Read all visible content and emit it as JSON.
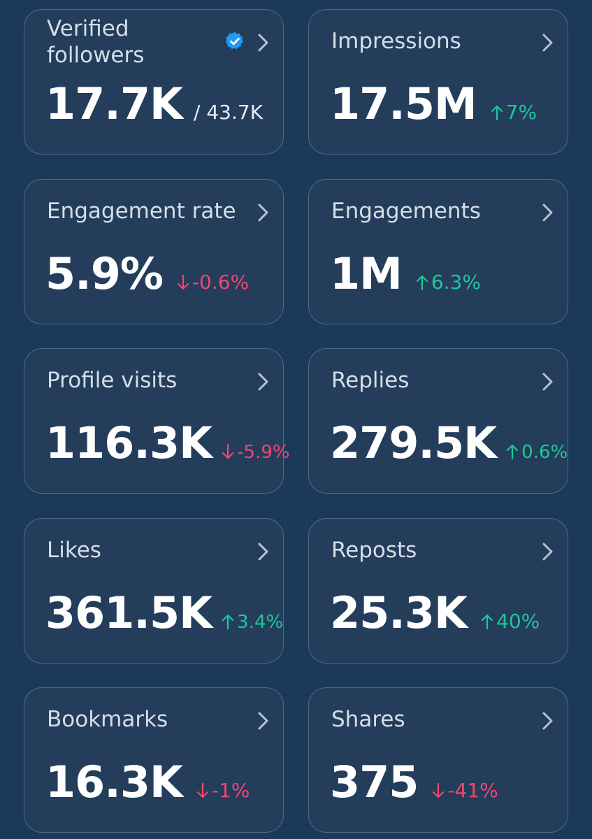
{
  "colors": {
    "background": "#1b3a59",
    "card_background": "#233d5b",
    "card_border": "#4f6c8a",
    "positive": "#1fc79a",
    "negative": "#f0476f",
    "verified_badge": "#1d9bf0"
  },
  "cards": [
    {
      "title": "Verified followers",
      "value": "17.7K",
      "sub": "/ 43.7K",
      "badge_icon": "verified-badge-icon",
      "chevron_icon": "chevron-right-icon"
    },
    {
      "title": "Impressions",
      "value": "17.5M",
      "delta": "7%",
      "direction": "up",
      "chevron_icon": "chevron-right-icon"
    },
    {
      "title": "Engagement rate",
      "value": "5.9%",
      "delta": "-0.6%",
      "direction": "down",
      "chevron_icon": "chevron-right-icon"
    },
    {
      "title": "Engagements",
      "value": "1M",
      "delta": "6.3%",
      "direction": "up",
      "chevron_icon": "chevron-right-icon"
    },
    {
      "title": "Profile visits",
      "value": "116.3K",
      "delta": "-5.9%",
      "direction": "down",
      "chevron_icon": "chevron-right-icon"
    },
    {
      "title": "Replies",
      "value": "279.5K",
      "delta": "0.6%",
      "direction": "up",
      "chevron_icon": "chevron-right-icon"
    },
    {
      "title": "Likes",
      "value": "361.5K",
      "delta": "3.4%",
      "direction": "up",
      "chevron_icon": "chevron-right-icon"
    },
    {
      "title": "Reposts",
      "value": "25.3K",
      "delta": "40%",
      "direction": "up",
      "chevron_icon": "chevron-right-icon"
    },
    {
      "title": "Bookmarks",
      "value": "16.3K",
      "delta": "-1%",
      "direction": "down",
      "chevron_icon": "chevron-right-icon"
    },
    {
      "title": "Shares",
      "value": "375",
      "delta": "-41%",
      "direction": "down",
      "chevron_icon": "chevron-right-icon"
    }
  ]
}
